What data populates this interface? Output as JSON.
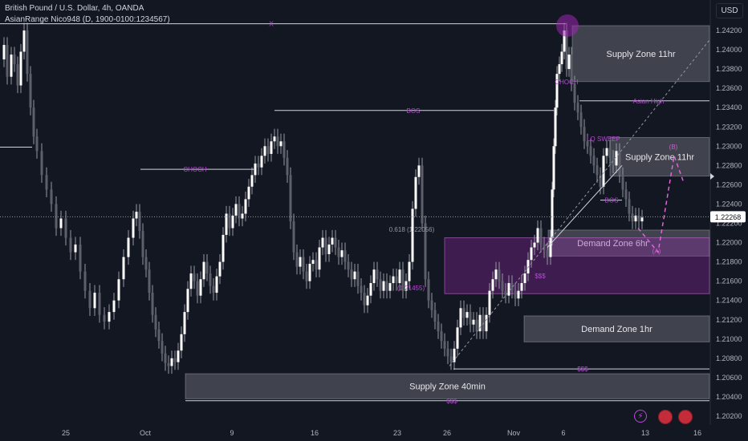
{
  "header": {
    "title": "British Pound / U.S. Dollar, 4h, OANDA",
    "indicator": "AsianRange Nico948 (D, 1900-0100:1234567)",
    "currency": "USD"
  },
  "price_label": "1.22268",
  "chart_data": {
    "type": "candlestick",
    "symbol": "GBPUSD",
    "timeframe": "4h",
    "ylim": [
      1.201,
      1.244
    ],
    "y_ticks": [
      "1.24200",
      "1.24000",
      "1.23800",
      "1.23600",
      "1.23400",
      "1.23200",
      "1.23000",
      "1.22800",
      "1.22600",
      "1.22400",
      "1.22200",
      "1.22000",
      "1.21800",
      "1.21600",
      "1.21400",
      "1.21200",
      "1.21000",
      "1.20800",
      "1.20600",
      "1.20400",
      "1.20200"
    ],
    "x_ticks": [
      "25",
      "Oct",
      "9",
      "16",
      "23",
      "26",
      "Nov",
      "6",
      "13",
      "16"
    ],
    "last_price": 1.22268,
    "price_path": [
      [
        0,
        1.239
      ],
      [
        5,
        1.2405
      ],
      [
        9,
        1.2372
      ],
      [
        14,
        1.2395
      ],
      [
        18,
        1.2385
      ],
      [
        22,
        1.2363
      ],
      [
        26,
        1.2398
      ],
      [
        30,
        1.242
      ],
      [
        34,
        1.2375
      ],
      [
        38,
        1.234
      ],
      [
        42,
        1.231
      ],
      [
        46,
        1.2295
      ],
      [
        52,
        1.227
      ],
      [
        58,
        1.2255
      ],
      [
        64,
        1.224
      ],
      [
        70,
        1.2215
      ],
      [
        76,
        1.2225
      ],
      [
        82,
        1.2205
      ],
      [
        88,
        1.219
      ],
      [
        94,
        1.2198
      ],
      [
        100,
        1.217
      ],
      [
        106,
        1.215
      ],
      [
        112,
        1.2132
      ],
      [
        118,
        1.2148
      ],
      [
        124,
        1.2125
      ],
      [
        130,
        1.2118
      ],
      [
        136,
        1.2128
      ],
      [
        142,
        1.214
      ],
      [
        148,
        1.2162
      ],
      [
        154,
        1.2185
      ],
      [
        160,
        1.2205
      ],
      [
        166,
        1.2225
      ],
      [
        170,
        1.2232
      ],
      [
        174,
        1.2212
      ],
      [
        178,
        1.2185
      ],
      [
        182,
        1.2172
      ],
      [
        186,
        1.2148
      ],
      [
        190,
        1.2125
      ],
      [
        194,
        1.211
      ],
      [
        198,
        1.2098
      ],
      [
        202,
        1.2085
      ],
      [
        206,
        1.2075
      ],
      [
        210,
        1.2072
      ],
      [
        214,
        1.208
      ],
      [
        218,
        1.2076
      ],
      [
        222,
        1.2088
      ],
      [
        226,
        1.2105
      ],
      [
        230,
        1.2128
      ],
      [
        234,
        1.2152
      ],
      [
        238,
        1.2168
      ],
      [
        242,
        1.216
      ],
      [
        246,
        1.2145
      ],
      [
        250,
        1.2162
      ],
      [
        254,
        1.218
      ],
      [
        258,
        1.2168
      ],
      [
        262,
        1.2155
      ],
      [
        266,
        1.2148
      ],
      [
        270,
        1.2165
      ],
      [
        274,
        1.218
      ],
      [
        278,
        1.2208
      ],
      [
        282,
        1.223
      ],
      [
        286,
        1.2215
      ],
      [
        290,
        1.2228
      ],
      [
        294,
        1.224
      ],
      [
        298,
        1.2225
      ],
      [
        302,
        1.223
      ],
      [
        306,
        1.2245
      ],
      [
        310,
        1.2258
      ],
      [
        314,
        1.227
      ],
      [
        318,
        1.2282
      ],
      [
        322,
        1.2278
      ],
      [
        326,
        1.229
      ],
      [
        330,
        1.23
      ],
      [
        334,
        1.2292
      ],
      [
        338,
        1.2305
      ],
      [
        342,
        1.231
      ],
      [
        346,
        1.23
      ],
      [
        350,
        1.2305
      ],
      [
        354,
        1.2288
      ],
      [
        358,
        1.227
      ],
      [
        362,
        1.2222
      ],
      [
        366,
        1.219
      ],
      [
        370,
        1.2175
      ],
      [
        374,
        1.2185
      ],
      [
        378,
        1.217
      ],
      [
        382,
        1.216
      ],
      [
        386,
        1.2178
      ],
      [
        390,
        1.2182
      ],
      [
        394,
        1.2172
      ],
      [
        398,
        1.2195
      ],
      [
        402,
        1.2205
      ],
      [
        406,
        1.2188
      ],
      [
        410,
        1.2198
      ],
      [
        414,
        1.2205
      ],
      [
        418,
        1.2195
      ],
      [
        422,
        1.2185
      ],
      [
        426,
        1.2192
      ],
      [
        430,
        1.218
      ],
      [
        434,
        1.2172
      ],
      [
        438,
        1.2162
      ],
      [
        442,
        1.217
      ],
      [
        446,
        1.2155
      ],
      [
        450,
        1.2148
      ],
      [
        454,
        1.2135
      ],
      [
        458,
        1.2145
      ],
      [
        462,
        1.2158
      ],
      [
        466,
        1.2172
      ],
      [
        470,
        1.2162
      ],
      [
        474,
        1.215
      ],
      [
        478,
        1.216
      ],
      [
        482,
        1.215
      ],
      [
        486,
        1.2158
      ],
      [
        490,
        1.2165
      ],
      [
        494,
        1.2158
      ],
      [
        498,
        1.2172
      ],
      [
        502,
        1.215
      ],
      [
        506,
        1.216
      ],
      [
        510,
        1.218
      ],
      [
        514,
        1.2235
      ],
      [
        518,
        1.2268
      ],
      [
        522,
        1.228
      ],
      [
        526,
        1.222
      ],
      [
        530,
        1.2162
      ],
      [
        534,
        1.214
      ],
      [
        538,
        1.213
      ],
      [
        542,
        1.2118
      ],
      [
        546,
        1.2108
      ],
      [
        550,
        1.2098
      ],
      [
        554,
        1.209
      ],
      [
        558,
        1.2082
      ],
      [
        562,
        1.2076
      ],
      [
        566,
        1.209
      ],
      [
        570,
        1.2112
      ],
      [
        574,
        1.2132
      ],
      [
        578,
        1.2122
      ],
      [
        582,
        1.2128
      ],
      [
        586,
        1.2115
      ],
      [
        590,
        1.212
      ],
      [
        594,
        1.2108
      ],
      [
        598,
        1.2125
      ],
      [
        602,
        1.2108
      ],
      [
        606,
        1.2125
      ],
      [
        610,
        1.215
      ],
      [
        614,
        1.2162
      ],
      [
        618,
        1.2172
      ],
      [
        622,
        1.216
      ],
      [
        626,
        1.215
      ],
      [
        630,
        1.2145
      ],
      [
        634,
        1.2158
      ],
      [
        638,
        1.215
      ],
      [
        642,
        1.2142
      ],
      [
        646,
        1.215
      ],
      [
        650,
        1.2158
      ],
      [
        654,
        1.2168
      ],
      [
        658,
        1.2182
      ],
      [
        662,
        1.2195
      ],
      [
        666,
        1.22
      ],
      [
        670,
        1.2215
      ],
      [
        674,
        1.2198
      ],
      [
        678,
        1.2192
      ],
      [
        682,
        1.2185
      ],
      [
        686,
        1.2205
      ],
      [
        688,
        1.2255
      ],
      [
        690,
        1.23
      ],
      [
        692,
        1.234
      ],
      [
        694,
        1.2375
      ],
      [
        697,
        1.2385
      ],
      [
        700,
        1.2398
      ],
      [
        703,
        1.242
      ],
      [
        706,
        1.238
      ],
      [
        709,
        1.2395
      ],
      [
        712,
        1.2365
      ],
      [
        716,
        1.2345
      ],
      [
        720,
        1.2335
      ],
      [
        724,
        1.232
      ],
      [
        728,
        1.2305
      ],
      [
        732,
        1.23
      ],
      [
        736,
        1.229
      ],
      [
        740,
        1.228
      ],
      [
        744,
        1.227
      ],
      [
        748,
        1.2258
      ],
      [
        752,
        1.229
      ],
      [
        756,
        1.2298
      ],
      [
        760,
        1.2288
      ],
      [
        764,
        1.228
      ],
      [
        768,
        1.2295
      ],
      [
        772,
        1.227
      ],
      [
        776,
        1.2255
      ],
      [
        780,
        1.2245
      ],
      [
        784,
        1.223
      ],
      [
        788,
        1.2222
      ],
      [
        792,
        1.2228
      ],
      [
        796,
        1.2222
      ],
      [
        800,
        1.2226
      ]
    ],
    "zones": [
      {
        "label": "Supply Zone 11hr",
        "top": 1.2425,
        "bottom": 1.2367
      },
      {
        "label": "Supply Zone 11hr",
        "top": 1.2309,
        "bottom": 1.2269
      },
      {
        "label": "Demand Zone 6hr",
        "top": 1.2213,
        "bottom": 1.2186
      },
      {
        "label": "",
        "top": 1.2205,
        "bottom": 1.2147,
        "color": "purple"
      },
      {
        "label": "Demand Zone 1hr",
        "top": 1.2124,
        "bottom": 1.2097
      },
      {
        "label": "Supply Zone 40min",
        "top": 1.2064,
        "bottom": 1.2038
      }
    ],
    "levels": [
      {
        "label": "X",
        "price": 1.2427
      },
      {
        "label": "BOS",
        "price": 1.2337
      },
      {
        "label": "CHOCH",
        "price": 1.2276
      },
      {
        "label": "Asian High",
        "price": 1.2347
      },
      {
        "label": "BOS",
        "price": 1.2244
      },
      {
        "label": "$$$",
        "price": 1.2069
      },
      {
        "label": "$$$",
        "price": 1.2036
      }
    ],
    "annotations": [
      "0.618 (1.22056)",
      "(1.21455)",
      "CHOCH",
      "LQ SWEEP",
      "(B)",
      "(A)",
      "$$$"
    ]
  }
}
